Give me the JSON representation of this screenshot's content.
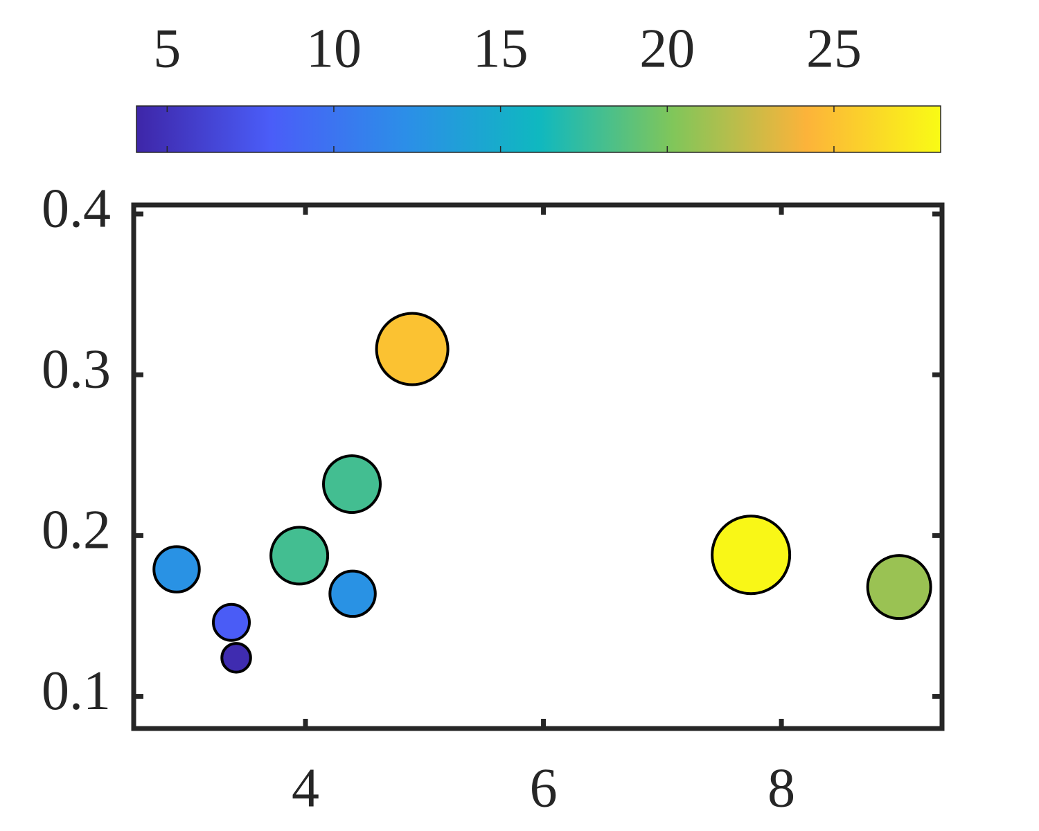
{
  "chart_data": {
    "type": "scatter",
    "x": [
      2.917,
      3.377,
      3.418,
      3.948,
      4.396,
      4.39,
      4.897,
      7.744,
      8.99
    ],
    "y": [
      0.179,
      0.146,
      0.124,
      0.1875,
      0.1638,
      0.232,
      0.316,
      0.188,
      0.168
    ],
    "color_values": [
      12.5,
      8,
      4.5,
      18,
      12.5,
      18,
      25,
      28,
      21
    ],
    "xlim": [
      2.556,
      9.35
    ],
    "xticks": [
      4,
      6,
      8
    ],
    "ylim": [
      0.08,
      0.4056
    ],
    "yticks": [
      0.1,
      0.2,
      0.3,
      0.4
    ],
    "clim": [
      4.08,
      28.2
    ],
    "cticks": [
      5,
      10,
      15,
      20,
      25
    ],
    "colormap": [
      "#3e26a8",
      "#4a5df8",
      "#2c8ee8",
      "#0fb8c0",
      "#80c65a",
      "#fcb33a",
      "#f9fb15"
    ],
    "grid": false
  }
}
